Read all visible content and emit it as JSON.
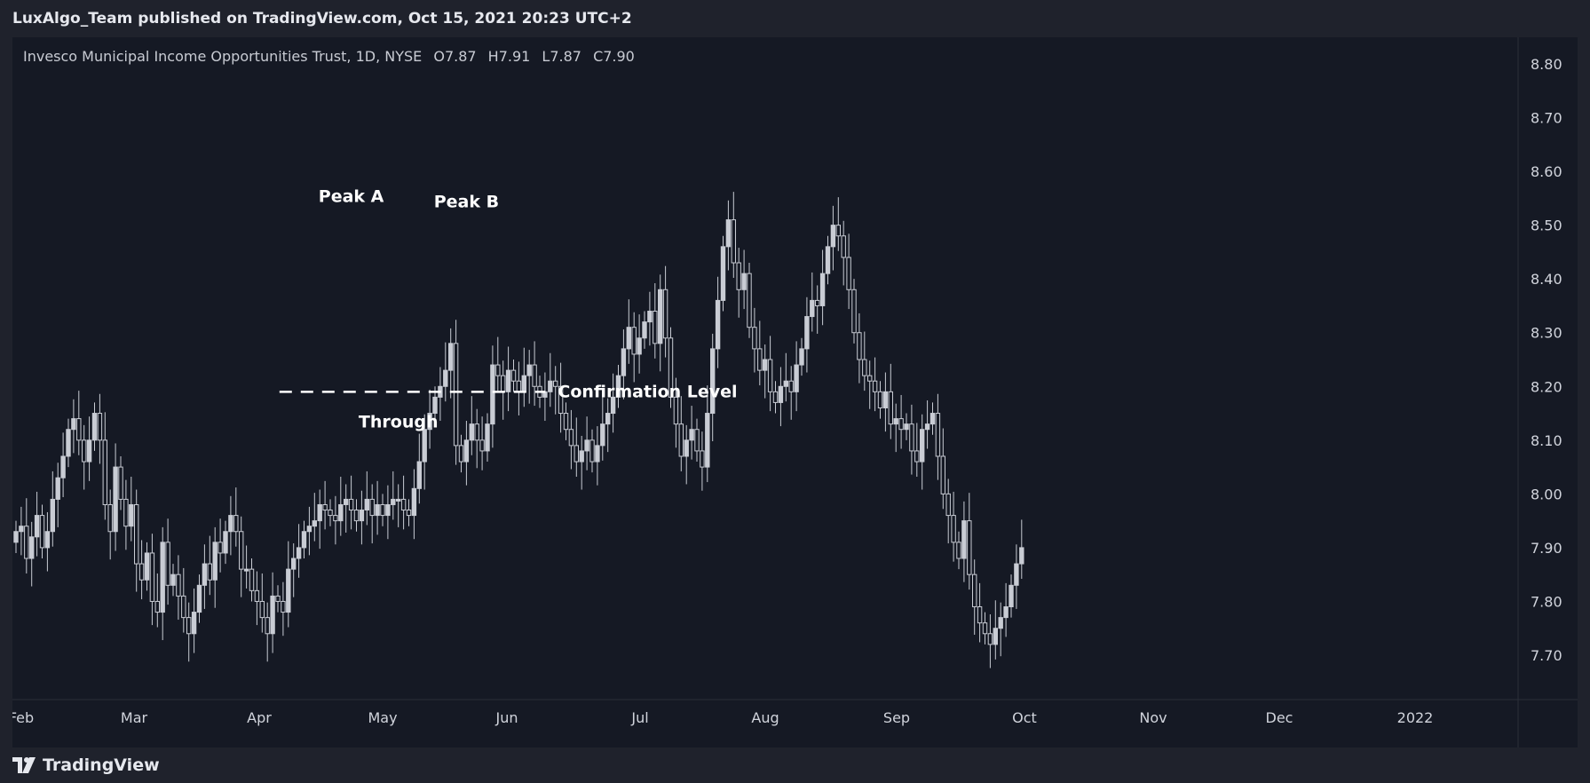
{
  "header": {
    "published_text": "LuxAlgo_Team published on TradingView.com, Oct 15, 2021 20:23 UTC+2"
  },
  "legend": {
    "title": "Invesco Municipal Income Opportunities Trust, 1D, NYSE",
    "open": "O7.87",
    "high": "H7.91",
    "low": "L7.87",
    "close": "C7.90"
  },
  "footer": {
    "brand": "TradingView"
  },
  "colors": {
    "background": "#151924",
    "candle": "#c9ccd4",
    "grid_text": "#d1d4dc",
    "annotation": "#ffffff"
  },
  "chart_data": {
    "type": "candlestick",
    "y_axis": {
      "ticks": [
        "8.80",
        "8.70",
        "8.60",
        "8.50",
        "8.40",
        "8.30",
        "8.20",
        "8.10",
        "8.00",
        "7.90",
        "7.80",
        "7.70"
      ],
      "range": [
        7.62,
        8.87
      ],
      "position": "right"
    },
    "x_axis": {
      "ticks": [
        "Feb",
        "Mar",
        "Apr",
        "May",
        "Jun",
        "Jul",
        "Aug",
        "Sep",
        "Oct",
        "Nov",
        "Dec",
        "2022"
      ]
    },
    "grid": false,
    "annotations": [
      {
        "text": "Peak A",
        "date_index": 64,
        "price": 8.52
      },
      {
        "text": "Peak B",
        "date_index": 86,
        "price": 8.51
      },
      {
        "text": "Through",
        "date_index": 73,
        "price": 8.17
      },
      {
        "text": "Confirmation Level",
        "price": 8.19,
        "line_from_index": 52,
        "line_to_index": 96,
        "style": "dashed"
      }
    ],
    "close_values": [
      7.93,
      7.94,
      7.88,
      7.92,
      7.96,
      7.9,
      7.93,
      7.99,
      8.03,
      8.07,
      8.12,
      8.14,
      8.1,
      8.06,
      8.1,
      8.15,
      8.1,
      7.98,
      7.93,
      8.05,
      7.99,
      7.94,
      7.98,
      7.87,
      7.84,
      7.89,
      7.8,
      7.78,
      7.91,
      7.83,
      7.85,
      7.81,
      7.77,
      7.74,
      7.78,
      7.83,
      7.87,
      7.84,
      7.91,
      7.89,
      7.93,
      7.96,
      7.93,
      7.86,
      7.86,
      7.82,
      7.8,
      7.77,
      7.74,
      7.81,
      7.8,
      7.78,
      7.86,
      7.88,
      7.9,
      7.93,
      7.94,
      7.95,
      7.98,
      7.97,
      7.96,
      7.95,
      7.98,
      7.99,
      7.97,
      7.95,
      7.97,
      7.99,
      7.96,
      7.98,
      7.96,
      7.98,
      7.99,
      7.99,
      7.97,
      7.96,
      8.01,
      8.06,
      8.12,
      8.15,
      8.18,
      8.2,
      8.23,
      8.28,
      8.09,
      8.06,
      8.1,
      8.13,
      8.1,
      8.08,
      8.13,
      8.24,
      8.22,
      8.19,
      8.23,
      8.21,
      8.19,
      8.22,
      8.24,
      8.2,
      8.18,
      8.19,
      8.21,
      8.2,
      8.15,
      8.12,
      8.09,
      8.06,
      8.08,
      8.1,
      8.06,
      8.09,
      8.13,
      8.15,
      8.18,
      8.22,
      8.27,
      8.31,
      8.26,
      8.29,
      8.32,
      8.34,
      8.28,
      8.38,
      8.29,
      8.18,
      8.13,
      8.07,
      8.1,
      8.12,
      8.08,
      8.05,
      8.15,
      8.27,
      8.36,
      8.46,
      8.51,
      8.43,
      8.38,
      8.41,
      8.31,
      8.27,
      8.23,
      8.25,
      8.19,
      8.17,
      8.2,
      8.21,
      8.19,
      8.24,
      8.27,
      8.33,
      8.36,
      8.35,
      8.41,
      8.46,
      8.5,
      8.48,
      8.44,
      8.38,
      8.3,
      8.25,
      8.22,
      8.21,
      8.19,
      8.16,
      8.19,
      8.13,
      8.14,
      8.12,
      8.13,
      8.08,
      8.06,
      8.12,
      8.13,
      8.15,
      8.07,
      8.0,
      7.96,
      7.91,
      7.88,
      7.95,
      7.85,
      7.79,
      7.76,
      7.74,
      7.72,
      7.75,
      7.77,
      7.79,
      7.83,
      7.87,
      7.9
    ]
  }
}
